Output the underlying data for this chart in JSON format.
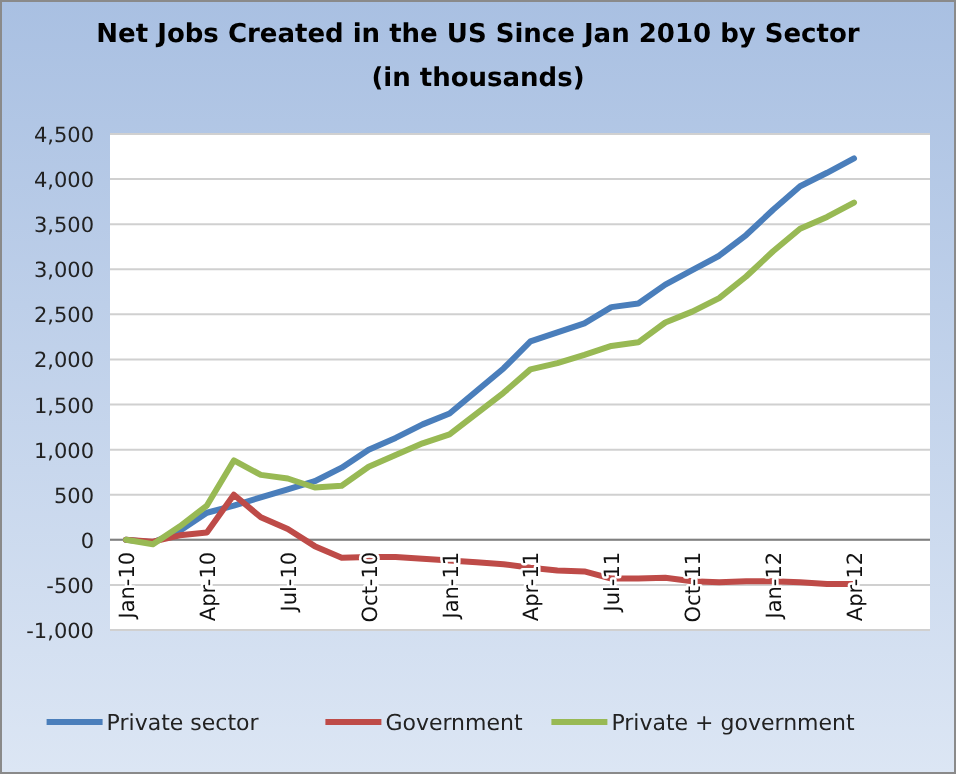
{
  "chart_data": {
    "type": "line",
    "title": "Net Jobs Created in the US Since Jan 2010 by Sector",
    "subtitle": "(in thousands)",
    "categories": [
      "Jan-10",
      null,
      null,
      "Apr-10",
      null,
      null,
      "Jul-10",
      null,
      null,
      "Oct-10",
      null,
      null,
      "Jan-11",
      null,
      null,
      "Apr-11",
      null,
      null,
      "Jul-11",
      null,
      null,
      "Oct-11",
      null,
      null,
      "Jan-12",
      null,
      null,
      "Apr-12"
    ],
    "series": [
      {
        "name": "Private sector",
        "color": "#4a7ebb",
        "values": [
          0,
          -30,
          100,
          300,
          380,
          470,
          560,
          650,
          800,
          1000,
          1130,
          1280,
          1400,
          1650,
          1900,
          2200,
          2300,
          2400,
          2580,
          2620,
          2830,
          2990,
          3150,
          3380,
          3660,
          3920,
          4070,
          4230
        ]
      },
      {
        "name": "Government",
        "color": "#be4b48",
        "values": [
          0,
          -20,
          50,
          80,
          500,
          250,
          120,
          -70,
          -200,
          -190,
          -190,
          -210,
          -230,
          -250,
          -270,
          -310,
          -340,
          -350,
          -430,
          -430,
          -420,
          -460,
          -470,
          -460,
          -460,
          -470,
          -490,
          -490
        ]
      },
      {
        "name": "Private + government",
        "color": "#98b954",
        "values": [
          0,
          -50,
          150,
          380,
          880,
          720,
          680,
          580,
          600,
          810,
          940,
          1070,
          1170,
          1400,
          1630,
          1890,
          1960,
          2050,
          2150,
          2190,
          2410,
          2530,
          2680,
          2920,
          3200,
          3450,
          3580,
          3740
        ]
      }
    ],
    "ylim": [
      -1000,
      4500
    ],
    "yticks": [
      {
        "value": -1000,
        "label": "-1,000"
      },
      {
        "value": -500,
        "label": "-500"
      },
      0,
      {
        "value": 500,
        "label": "500"
      },
      {
        "value": 1000,
        "label": "1,000"
      },
      {
        "value": 1500,
        "label": "1,500"
      },
      {
        "value": 2000,
        "label": "2,000"
      },
      {
        "value": 2500,
        "label": "2,500"
      },
      {
        "value": 3000,
        "label": "3,000"
      },
      {
        "value": 3500,
        "label": "3,500"
      },
      {
        "value": 4000,
        "label": "4,000"
      },
      {
        "value": 4500,
        "label": "4,500"
      }
    ],
    "grid": "y",
    "legend": "bottom",
    "line_style": "solid",
    "marker": "none"
  }
}
